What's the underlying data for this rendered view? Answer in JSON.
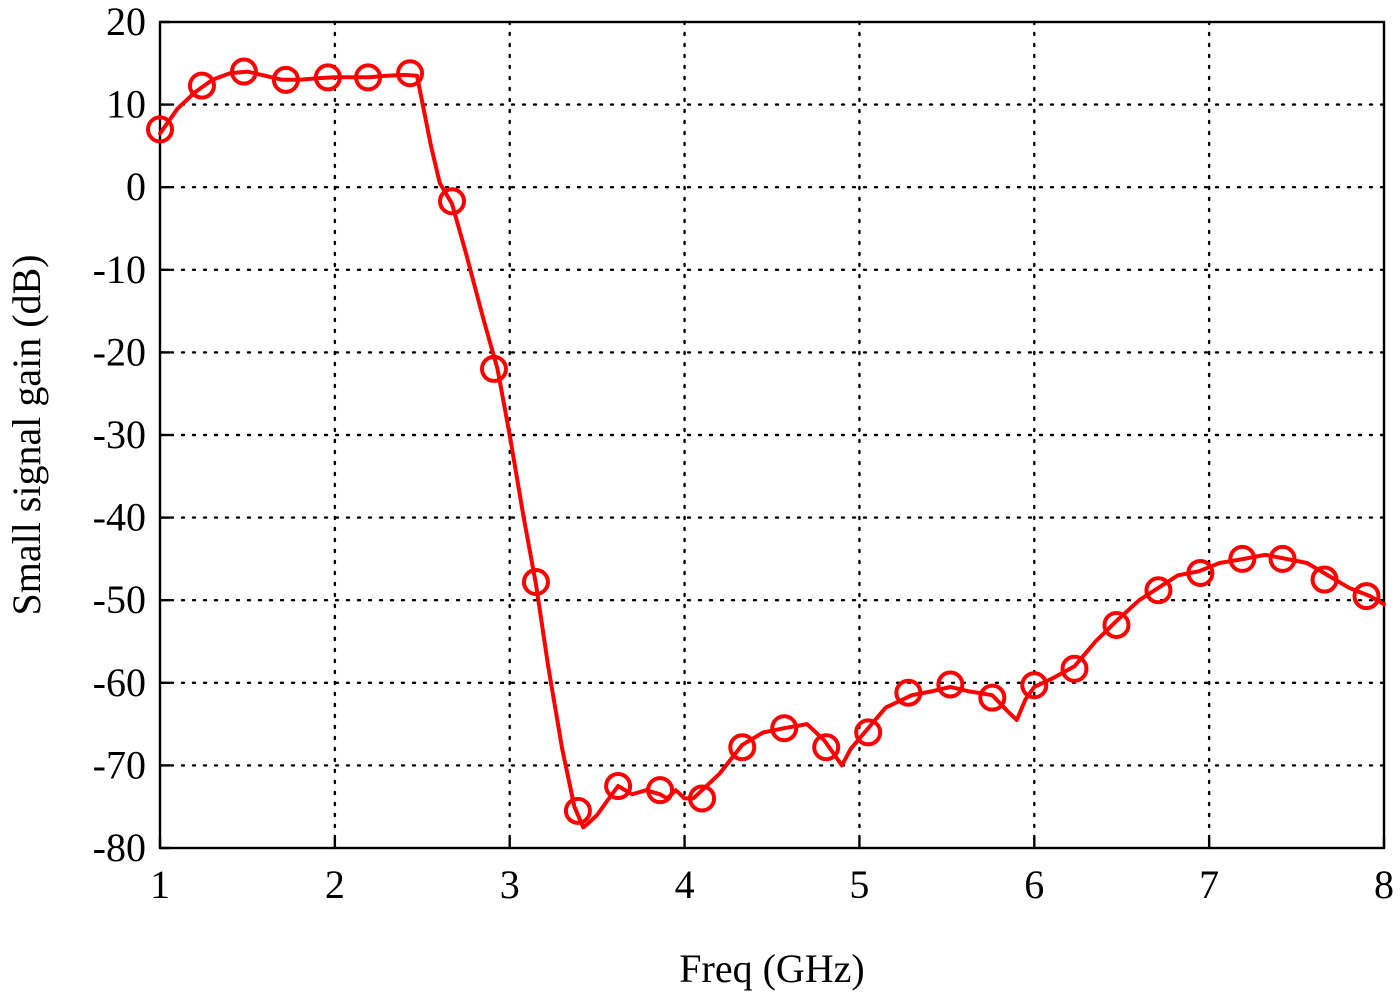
{
  "chart_data": {
    "type": "line",
    "title": "",
    "xlabel": "Freq (GHz)",
    "ylabel": "Small signal gain (dB)",
    "xlim": [
      1,
      8
    ],
    "ylim": [
      -80,
      20
    ],
    "xticks": [
      1,
      2,
      3,
      4,
      5,
      6,
      7,
      8
    ],
    "yticks": [
      20,
      10,
      0,
      -10,
      -20,
      -30,
      -40,
      -50,
      -60,
      -70,
      -80
    ],
    "xtick_labels": [
      "1",
      "2",
      "3",
      "4",
      "5",
      "6",
      "7",
      "8"
    ],
    "ytick_labels": [
      "20",
      "10",
      "0",
      "-10",
      "-20",
      "-30",
      "-40",
      "-50",
      "-60",
      "-70",
      "-80"
    ],
    "grid": true,
    "legend": "none",
    "series": [
      {
        "color": "#ff0000",
        "marker": "open-circle",
        "line": {
          "x": [
            1.0,
            1.1,
            1.2,
            1.3,
            1.4,
            1.5,
            1.6,
            1.7,
            1.8,
            1.9,
            2.0,
            2.1,
            2.2,
            2.3,
            2.4,
            2.47,
            2.55,
            2.6,
            2.67,
            2.75,
            2.85,
            2.93,
            3.0,
            3.08,
            3.15,
            3.22,
            3.3,
            3.37,
            3.42,
            3.45,
            3.5,
            3.55,
            3.62,
            3.7,
            3.78,
            3.86,
            3.9,
            3.95,
            4.0,
            4.05,
            4.1,
            4.2,
            4.33,
            4.45,
            4.57,
            4.7,
            4.8,
            4.85,
            4.9,
            4.95,
            5.05,
            5.15,
            5.3,
            5.42,
            5.52,
            5.62,
            5.76,
            5.85,
            5.9,
            5.95,
            6.0,
            6.1,
            6.23,
            6.35,
            6.47,
            6.6,
            6.71,
            6.82,
            6.94,
            7.06,
            7.2,
            7.32,
            7.44,
            7.56,
            7.68,
            7.8,
            7.92,
            8.0
          ],
          "y": [
            6.5,
            9.5,
            11.5,
            13.0,
            13.8,
            14.0,
            13.5,
            13.0,
            13.0,
            13.2,
            13.3,
            13.3,
            13.3,
            13.5,
            13.6,
            13.5,
            5.0,
            0.5,
            -2.0,
            -8.0,
            -16.0,
            -22.0,
            -30.0,
            -40.0,
            -48.0,
            -58.0,
            -68.0,
            -75.0,
            -77.5,
            -77.0,
            -76.0,
            -74.5,
            -72.5,
            -73.5,
            -73.0,
            -73.5,
            -74.0,
            -73.0,
            -74.0,
            -74.0,
            -73.0,
            -71.0,
            -67.5,
            -66.0,
            -65.5,
            -65.0,
            -67.0,
            -68.5,
            -70.0,
            -68.0,
            -65.5,
            -63.0,
            -61.5,
            -61.0,
            -60.5,
            -61.0,
            -61.5,
            -63.5,
            -64.5,
            -62.0,
            -60.5,
            -59.5,
            -58.0,
            -55.0,
            -52.5,
            -50.0,
            -48.5,
            -47.0,
            -46.5,
            -45.5,
            -45.0,
            -44.5,
            -45.0,
            -45.5,
            -47.0,
            -48.5,
            -49.5,
            -50.5
          ]
        },
        "markers": {
          "x": [
            1.0,
            1.24,
            1.48,
            1.72,
            1.96,
            2.19,
            2.43,
            2.67,
            2.91,
            3.15,
            3.39,
            3.62,
            3.86,
            4.1,
            4.33,
            4.57,
            4.81,
            5.05,
            5.28,
            5.52,
            5.76,
            6.0,
            6.23,
            6.47,
            6.71,
            6.95,
            7.19,
            7.42,
            7.66,
            7.9
          ],
          "y": [
            7.0,
            12.3,
            14.0,
            13.0,
            13.3,
            13.3,
            13.8,
            -1.7,
            -22.0,
            -47.8,
            -75.5,
            -72.5,
            -73.0,
            -74.0,
            -67.8,
            -65.5,
            -67.8,
            -66.0,
            -61.2,
            -60.2,
            -61.8,
            -60.3,
            -58.3,
            -53.0,
            -48.8,
            -46.7,
            -45.0,
            -45.0,
            -47.5,
            -49.5
          ]
        }
      }
    ]
  }
}
